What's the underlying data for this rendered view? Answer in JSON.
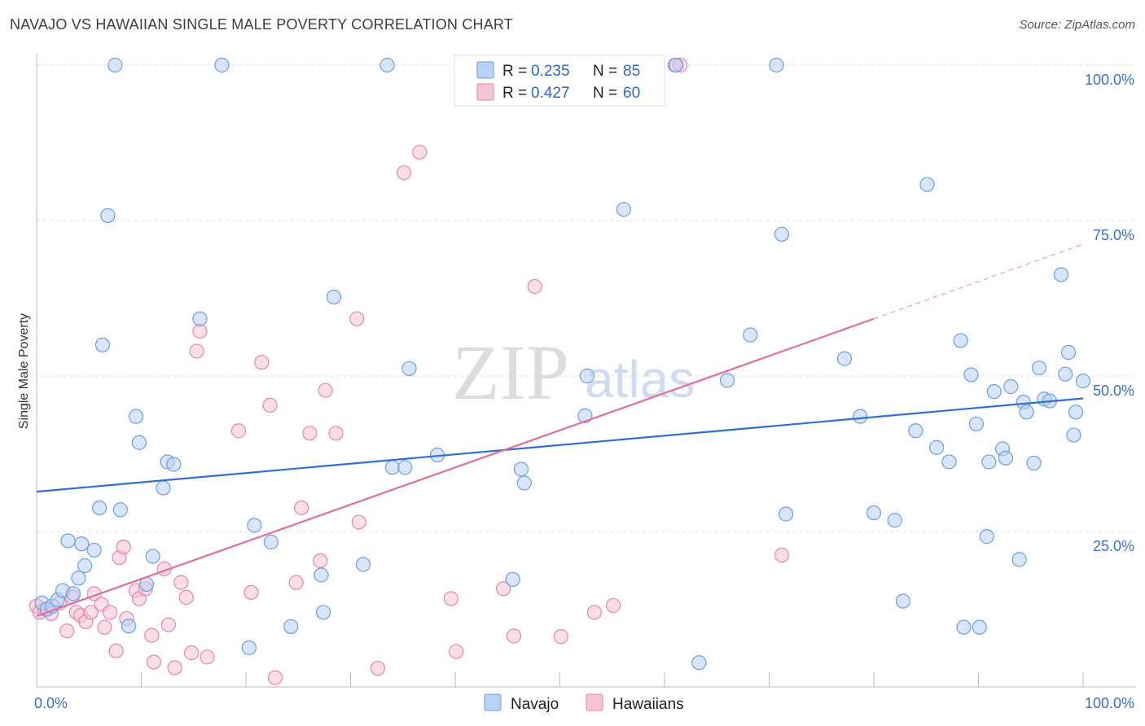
{
  "title": "NAVAJO VS HAWAIIAN SINGLE MALE POVERTY CORRELATION CHART",
  "source": "Source: ZipAtlas.com",
  "watermark": {
    "zip": "ZIP",
    "atlas": "atlas"
  },
  "colors": {
    "navajo": "#6a9ee0",
    "navajo_fill": "#b9d1f4",
    "hawaiian": "#e884a6",
    "hawaiian_fill": "#f6c4d6",
    "navajo_line": "#2f6fcf",
    "hawaiian_line": "#e0709a",
    "tick_text": "#3a6fc9"
  },
  "chart_data": {
    "type": "scatter",
    "title": "NAVAJO VS HAWAIIAN SINGLE MALE POVERTY CORRELATION CHART",
    "xlabel": "",
    "ylabel": "Single Male Poverty",
    "xlim": [
      0,
      100
    ],
    "ylim": [
      0,
      100
    ],
    "x_tick_labels": [
      "0.0%",
      "100.0%"
    ],
    "y_tick_labels": [
      "25.0%",
      "50.0%",
      "75.0%",
      "100.0%"
    ],
    "y_ticks": [
      25,
      50,
      75,
      100
    ],
    "grid": true,
    "legend": {
      "placement": "top-center",
      "entries": [
        {
          "r_label": "R = ",
          "r_value": "0.235",
          "n_label": "N = ",
          "n_value": "85"
        },
        {
          "r_label": "R = ",
          "r_value": "0.427",
          "n_label": "N = ",
          "n_value": "60"
        }
      ]
    },
    "bottom_legend": [
      "Navajo",
      "Hawaiians"
    ],
    "series": [
      {
        "name": "Navajo",
        "trend": {
          "x": [
            0,
            100
          ],
          "y": [
            31.4,
            46.4
          ]
        },
        "points": [
          [
            0.5,
            13.5
          ],
          [
            1,
            12.5
          ],
          [
            1.5,
            13
          ],
          [
            2,
            14
          ],
          [
            2.5,
            15.5
          ],
          [
            3,
            23.5
          ],
          [
            3.5,
            15
          ],
          [
            4,
            17.5
          ],
          [
            4.3,
            23
          ],
          [
            4.6,
            19.5
          ],
          [
            5.5,
            22
          ],
          [
            6,
            28.8
          ],
          [
            6.3,
            55
          ],
          [
            6.8,
            75.8
          ],
          [
            7.5,
            100
          ],
          [
            8,
            28.5
          ],
          [
            8.8,
            9.8
          ],
          [
            9.5,
            43.5
          ],
          [
            9.8,
            39.3
          ],
          [
            10.5,
            16.5
          ],
          [
            11.1,
            21
          ],
          [
            12.1,
            32
          ],
          [
            12.5,
            36.2
          ],
          [
            13.1,
            35.8
          ],
          [
            15.6,
            59.2
          ],
          [
            17.7,
            100
          ],
          [
            20.3,
            6.3
          ],
          [
            20.8,
            26
          ],
          [
            22.4,
            23.3
          ],
          [
            24.3,
            9.7
          ],
          [
            27.2,
            18
          ],
          [
            27.4,
            12
          ],
          [
            28.4,
            62.7
          ],
          [
            31.2,
            19.7
          ],
          [
            33.5,
            100
          ],
          [
            34,
            35.3
          ],
          [
            35.2,
            35.3
          ],
          [
            35.6,
            51.2
          ],
          [
            38.3,
            37.3
          ],
          [
            45.5,
            17.3
          ],
          [
            46.3,
            35
          ],
          [
            46.6,
            32.8
          ],
          [
            52.6,
            50
          ],
          [
            52.4,
            43.6
          ],
          [
            56.1,
            76.8
          ],
          [
            61.1,
            100
          ],
          [
            63.3,
            3.9
          ],
          [
            66,
            49.3
          ],
          [
            68.2,
            56.6
          ],
          [
            70.7,
            100
          ],
          [
            71.2,
            72.8
          ],
          [
            71.6,
            27.8
          ],
          [
            77.2,
            52.8
          ],
          [
            78.7,
            43.5
          ],
          [
            80,
            28
          ],
          [
            82,
            26.8
          ],
          [
            82.8,
            13.8
          ],
          [
            84,
            41.2
          ],
          [
            85.1,
            80.8
          ],
          [
            86,
            38.5
          ],
          [
            87.2,
            36.2
          ],
          [
            88.3,
            55.7
          ],
          [
            88.6,
            9.6
          ],
          [
            89.3,
            50.2
          ],
          [
            89.8,
            42.3
          ],
          [
            90.1,
            9.6
          ],
          [
            90.8,
            24.2
          ],
          [
            91,
            36.2
          ],
          [
            91.5,
            47.5
          ],
          [
            92.3,
            38.3
          ],
          [
            92.6,
            36.8
          ],
          [
            93.1,
            48.3
          ],
          [
            93.9,
            20.5
          ],
          [
            94.3,
            45.8
          ],
          [
            94.6,
            44.2
          ],
          [
            95.3,
            36
          ],
          [
            95.8,
            51.3
          ],
          [
            96.3,
            46.3
          ],
          [
            96.8,
            46
          ],
          [
            97.9,
            66.3
          ],
          [
            98.3,
            50.3
          ],
          [
            98.6,
            53.8
          ],
          [
            99.1,
            40.5
          ],
          [
            99.3,
            44.2
          ],
          [
            100,
            49.2
          ]
        ]
      },
      {
        "name": "Hawaiians",
        "trend": {
          "x": [
            0,
            80
          ],
          "y": [
            11.4,
            59.2
          ]
        },
        "trend_dashed": {
          "x": [
            80,
            100
          ],
          "y": [
            59.2,
            71.2
          ]
        },
        "points": [
          [
            0,
            13
          ],
          [
            0.3,
            12
          ],
          [
            0.8,
            12.5
          ],
          [
            1.4,
            11.8
          ],
          [
            2.2,
            13.5
          ],
          [
            2.9,
            9
          ],
          [
            3.4,
            14.5
          ],
          [
            3.8,
            12
          ],
          [
            4.2,
            11.5
          ],
          [
            4.7,
            10.5
          ],
          [
            5.2,
            12
          ],
          [
            5.5,
            15
          ],
          [
            6.2,
            13.3
          ],
          [
            6.5,
            9.6
          ],
          [
            7,
            12
          ],
          [
            7.6,
            5.8
          ],
          [
            7.9,
            20.8
          ],
          [
            8.3,
            22.5
          ],
          [
            8.6,
            11
          ],
          [
            9.5,
            15.5
          ],
          [
            9.8,
            14.2
          ],
          [
            10.4,
            15.8
          ],
          [
            11,
            8.3
          ],
          [
            11.2,
            4
          ],
          [
            12.2,
            19
          ],
          [
            12.6,
            10
          ],
          [
            13.2,
            3.1
          ],
          [
            13.8,
            16.8
          ],
          [
            14.3,
            14.4
          ],
          [
            14.8,
            5.5
          ],
          [
            15.3,
            54
          ],
          [
            15.6,
            57.2
          ],
          [
            16.3,
            4.8
          ],
          [
            19.3,
            41.2
          ],
          [
            20.5,
            15.2
          ],
          [
            21.5,
            52.2
          ],
          [
            22.3,
            45.3
          ],
          [
            22.8,
            1.5
          ],
          [
            24.8,
            16.8
          ],
          [
            25.3,
            28.8
          ],
          [
            26.1,
            40.8
          ],
          [
            27.1,
            20.3
          ],
          [
            27.6,
            47.7
          ],
          [
            28.6,
            40.8
          ],
          [
            30.6,
            59.2
          ],
          [
            30.8,
            26.5
          ],
          [
            32.6,
            3
          ],
          [
            35.1,
            82.7
          ],
          [
            36.6,
            86
          ],
          [
            39.6,
            14.2
          ],
          [
            40.1,
            5.7
          ],
          [
            44.6,
            15.8
          ],
          [
            45.6,
            8.2
          ],
          [
            47.6,
            64.4
          ],
          [
            50.1,
            8.1
          ],
          [
            53.3,
            12
          ],
          [
            55.1,
            13.1
          ],
          [
            61,
            100
          ],
          [
            71.2,
            21.2
          ],
          [
            61.5,
            100
          ]
        ]
      }
    ]
  }
}
